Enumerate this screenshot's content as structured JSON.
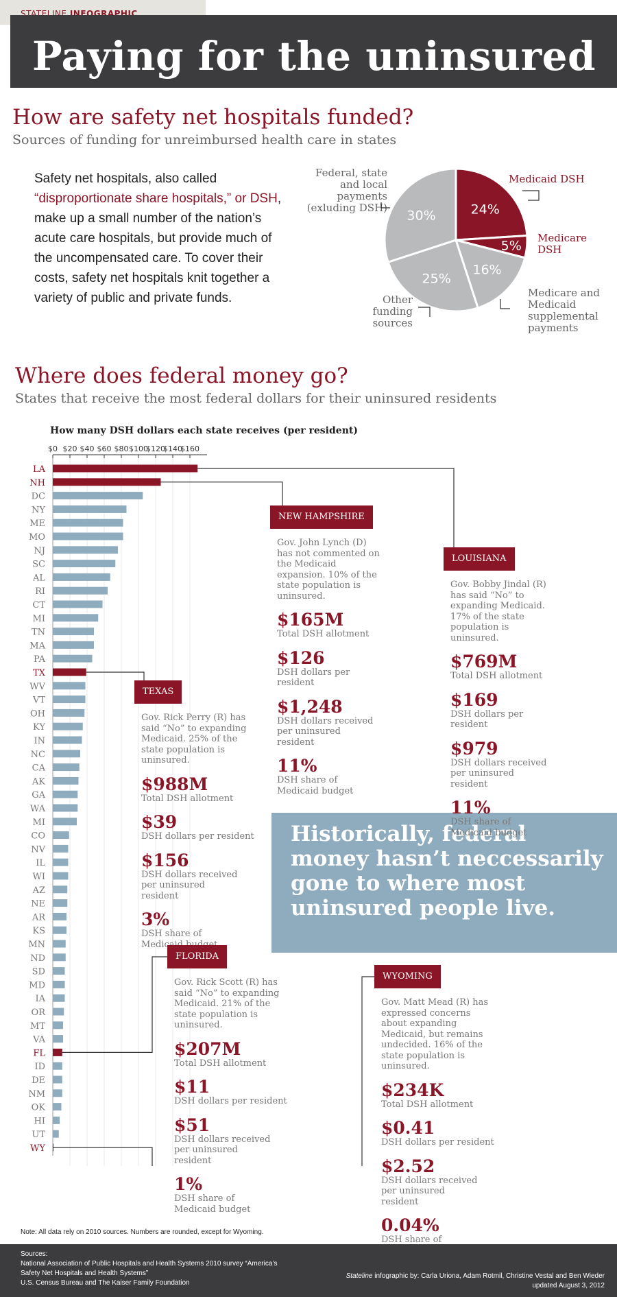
{
  "tag": {
    "prefix": "STATELINE",
    "suffix": "INFOGRAPHIC"
  },
  "title": "Paying for the uninsured",
  "section1": {
    "heading": "How are safety net hospitals funded?",
    "subheading": "Sources of funding for unreimbursed health care in states",
    "intro_before": "Safety net hospitals, also called ",
    "intro_red": "“disproportionate share hospitals,” or DSH",
    "intro_after": ", make up a small number of the nation’s acute care hospitals, but provide much of the uncompensated care. To cover their costs, safety net hospitals knit together a variety of public and private funds."
  },
  "pie_labels": {
    "medicaid_dsh": "Medicaid DSH",
    "medicare_dsh": "Medicare DSH",
    "supplemental": "Medicare and Medicaid supplemental payments",
    "other": "Other funding sources",
    "federal_state_local": "Federal, state and local payments (exluding DSH)"
  },
  "section2": {
    "heading": "Where does federal money go?",
    "subheading": "States that receive the most federal dollars for their uninsured residents"
  },
  "callouts": {
    "nh": {
      "title": "NEW HAMPSHIRE",
      "desc": "Gov. John Lynch (D) has not commented on the Medicaid expansion. 10% of the state population is uninsured.",
      "items": [
        {
          "v": "$165M",
          "l": "Total DSH allotment"
        },
        {
          "v": "$126",
          "l": "DSH dollars per resident"
        },
        {
          "v": "$1,248",
          "l": "DSH dollars received per uninsured resident"
        },
        {
          "v": "11%",
          "l": "DSH share of Medicaid budget"
        }
      ]
    },
    "la": {
      "title": "LOUISIANA",
      "desc": "Gov. Bobby Jindal (R) has said “No” to expanding Medicaid. 17% of the state population is uninsured.",
      "items": [
        {
          "v": "$769M",
          "l": "Total DSH allotment"
        },
        {
          "v": "$169",
          "l": "DSH dollars per resident"
        },
        {
          "v": "$979",
          "l": "DSH dollars received per uninsured resident"
        },
        {
          "v": "11%",
          "l": "DSH share of Medicaid budget"
        }
      ]
    },
    "tx": {
      "title": "TEXAS",
      "desc": "Gov. Rick Perry (R) has said “No” to expanding Medicaid. 25% of the state population is uninsured.",
      "items": [
        {
          "v": "$988M",
          "l": "Total DSH allotment"
        },
        {
          "v": "$39",
          "l": "DSH dollars per resident"
        },
        {
          "v": "$156",
          "l": "DSH dollars received per uninsured resident"
        },
        {
          "v": "3%",
          "l": "DSH share of Medicaid budget"
        }
      ]
    },
    "fl": {
      "title": "FLORIDA",
      "desc": "Gov. Rick Scott (R) has said “No” to expanding Medicaid. 21% of the state population is uninsured.",
      "items": [
        {
          "v": "$207M",
          "l": "Total DSH allotment"
        },
        {
          "v": "$11",
          "l": "DSH dollars per resident"
        },
        {
          "v": "$51",
          "l": "DSH dollars received per uninsured resident"
        },
        {
          "v": "1%",
          "l": "DSH share of Medicaid budget"
        }
      ]
    },
    "wy": {
      "title": "WYOMING",
      "desc": "Gov. Matt Mead (R) has expressed concerns about expanding Medicaid, but remains undecided. 16% of the state population is uninsured.",
      "items": [
        {
          "v": "$234K",
          "l": "Total DSH allotment"
        },
        {
          "v": "$0.41",
          "l": "DSH dollars per resident"
        },
        {
          "v": "$2.52",
          "l": "DSH dollars received per uninsured resident"
        },
        {
          "v": "0.04%",
          "l": "DSH share of Medicaid budget"
        }
      ]
    }
  },
  "historically": "Historically, federal money hasn’t neccessarily gone to where most uninsured people live.",
  "note": "Note: All data rely on 2010 sources. Numbers are rounded, except for Wyoming.",
  "sources": {
    "heading": "Sources:",
    "line1": "National Association of Public Hospitals and Health Systems 2010 survey “America’s",
    "line2": "Safety Net Hospitals and Health Systems”",
    "line3": "U.S. Census Bureau and The Kaiser Family Foundation"
  },
  "credit": {
    "byline_em": "Stateline",
    "byline_rest": " infographic by: Carla Uriona, Adam Rotmil, Christine Vestal and Ben Wieder",
    "updated": "updated August 3, 2012"
  },
  "colors": {
    "accent": "#8a1526",
    "bar": "#8facbe",
    "pie_gray": "#b9babc",
    "header": "#3c3c3e"
  },
  "chart_data": [
    {
      "type": "pie",
      "slices": [
        {
          "name": "Medicaid DSH",
          "value": 24,
          "label": "24%",
          "color": "#8a1526"
        },
        {
          "name": "Medicare DSH",
          "value": 5,
          "label": "5%",
          "color": "#8a1526"
        },
        {
          "name": "Medicare and Medicaid supplemental payments",
          "value": 16,
          "label": "16%",
          "color": "#b9babc"
        },
        {
          "name": "Other funding sources",
          "value": 25,
          "label": "25%",
          "color": "#b9babc"
        },
        {
          "name": "Federal, state and local payments (exluding DSH)",
          "value": 30,
          "label": "30%",
          "color": "#b9babc"
        }
      ]
    },
    {
      "type": "bar",
      "orientation": "horizontal",
      "title": "How many DSH dollars each state receives (per resident)",
      "xticks": [
        "$0",
        "$20",
        "$40",
        "$60",
        "$80",
        "$100",
        "$120",
        "$140",
        "$160"
      ],
      "xlim": [
        0,
        180
      ],
      "grid": true,
      "highlight": [
        "LA",
        "NH",
        "TX",
        "FL",
        "WY"
      ],
      "categories": [
        "LA",
        "NH",
        "DC",
        "NY",
        "ME",
        "MO",
        "NJ",
        "SC",
        "AL",
        "RI",
        "CT",
        "MI",
        "TN",
        "MA",
        "PA",
        "TX",
        "WV",
        "VT",
        "OH",
        "KY",
        "IN",
        "NC",
        "CA",
        "AK",
        "GA",
        "WA",
        "MI",
        "CO",
        "NV",
        "IL",
        "WI",
        "AZ",
        "NE",
        "AR",
        "KS",
        "MN",
        "ND",
        "SD",
        "MD",
        "IA",
        "OR",
        "MT",
        "VA",
        "FL",
        "ID",
        "DE",
        "NM",
        "OK",
        "HI",
        "UT",
        "WY"
      ],
      "values": [
        169,
        126,
        105,
        86,
        82,
        82,
        76,
        73,
        67,
        64,
        58,
        53,
        48,
        48,
        46,
        39,
        38,
        38,
        37,
        35,
        34,
        32,
        31,
        30,
        29,
        29,
        28,
        19,
        18,
        18,
        18,
        17,
        17,
        16,
        16,
        15,
        15,
        14,
        14,
        14,
        13,
        12,
        12,
        11,
        11,
        11,
        11,
        10,
        8,
        7,
        0.41
      ]
    }
  ]
}
